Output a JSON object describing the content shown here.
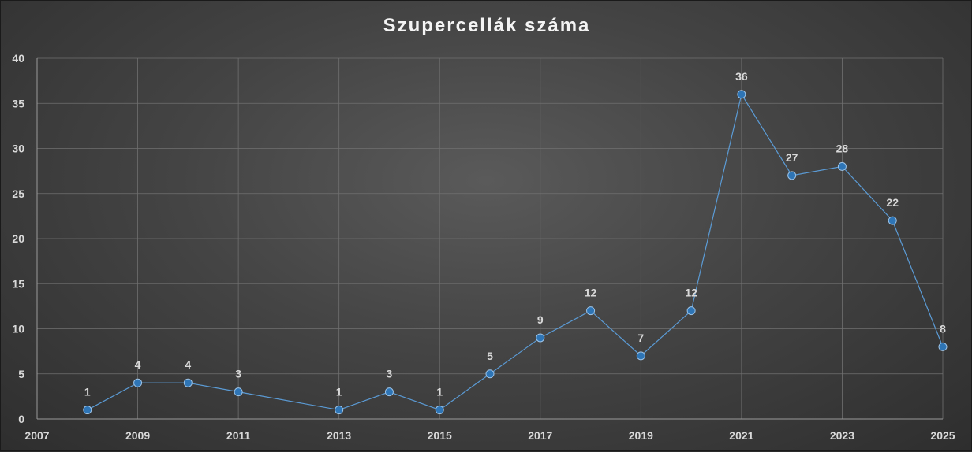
{
  "chart_data": {
    "type": "scatter",
    "title": "Szupercellák száma",
    "xlabel": "",
    "ylabel": "",
    "xlim": [
      2007,
      2025
    ],
    "ylim": [
      0,
      40
    ],
    "x_ticks": [
      "2007",
      "2009",
      "2011",
      "2013",
      "2015",
      "2017",
      "2019",
      "2021",
      "2023",
      "2025"
    ],
    "y_ticks": [
      "0",
      "5",
      "10",
      "15",
      "20",
      "25",
      "30",
      "35",
      "40"
    ],
    "grid": true,
    "legend": "none",
    "series": [
      {
        "x": [
          2008,
          2009,
          2010,
          2011,
          2013,
          2014,
          2015,
          2016,
          2017,
          2018,
          2019,
          2020,
          2021,
          2022,
          2023,
          2024,
          2025
        ],
        "y": [
          1,
          4,
          4,
          3,
          1,
          3,
          1,
          5,
          9,
          12,
          7,
          12,
          36,
          27,
          28,
          22,
          8
        ],
        "labels": [
          "1",
          "4",
          "4",
          "3",
          "1",
          "3",
          "1",
          "5",
          "9",
          "12",
          "7",
          "12",
          "36",
          "27",
          "28",
          "22",
          "8"
        ],
        "color": "#5b9bd5",
        "marker_color": "#2e75b6"
      }
    ]
  }
}
